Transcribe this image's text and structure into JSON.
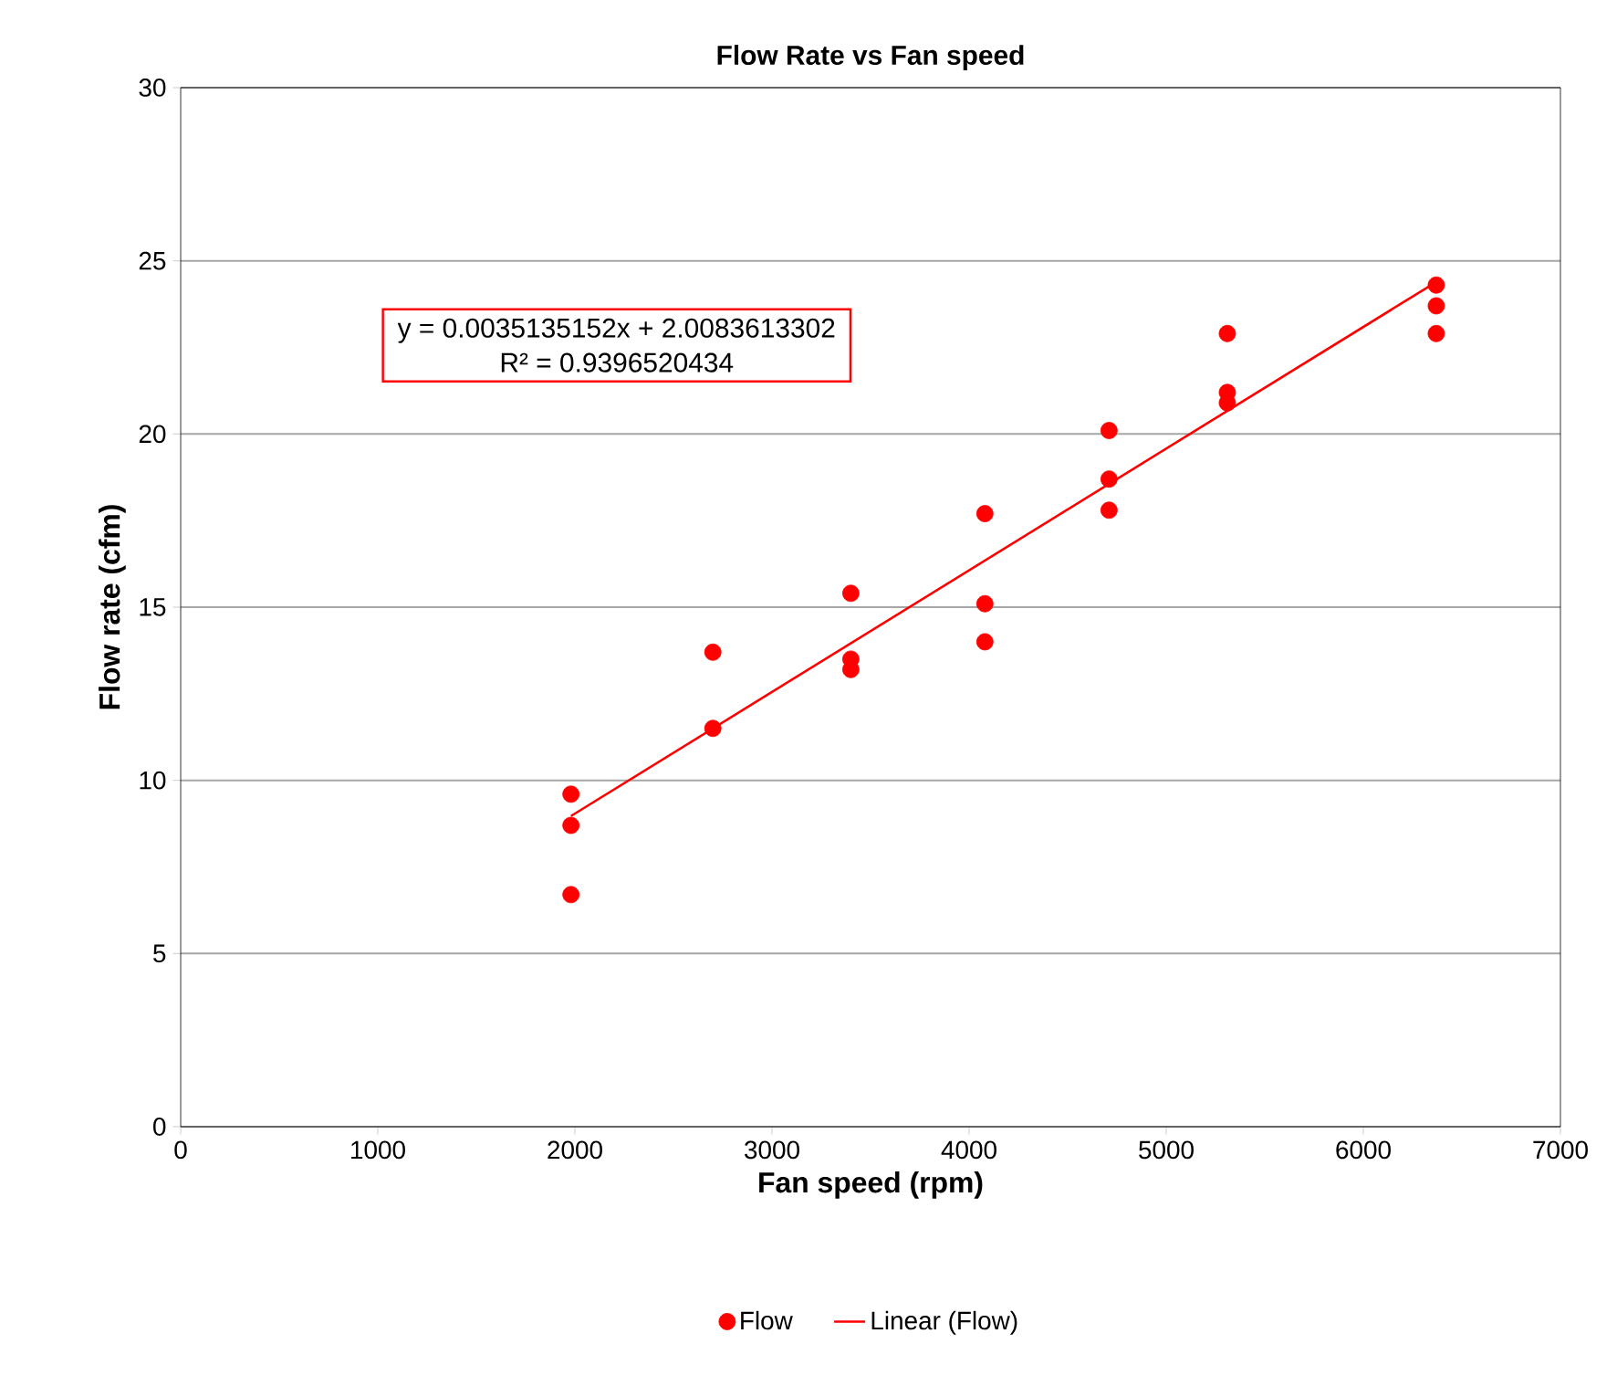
{
  "chart_data": {
    "type": "scatter",
    "title": "Flow Rate vs Fan speed",
    "xlabel": "Fan speed (rpm)",
    "ylabel": "Flow rate (cfm)",
    "xlim": [
      0,
      7000
    ],
    "xticks": [
      0,
      1000,
      2000,
      3000,
      4000,
      5000,
      6000,
      7000
    ],
    "ylim": [
      0,
      30
    ],
    "yticks": [
      0,
      5,
      10,
      15,
      20,
      25,
      30
    ],
    "grid": "y",
    "legend": "bottom",
    "annotations": [
      "y = 0.0035135152x + 2.0083613302",
      "R² = 0.9396520434"
    ],
    "series": [
      {
        "name": "Flow",
        "color": "#ff0000",
        "marker": "circle",
        "x": [
          1980,
          1980,
          1980,
          2700,
          2700,
          3400,
          3400,
          3400,
          4080,
          4080,
          4080,
          4710,
          4710,
          4710,
          5310,
          5310,
          5310,
          6370,
          6370,
          6370
        ],
        "values": [
          9.6,
          8.7,
          6.7,
          13.7,
          11.5,
          15.4,
          13.5,
          13.2,
          17.7,
          15.1,
          14.0,
          20.1,
          18.7,
          17.8,
          22.9,
          21.2,
          20.9,
          24.3,
          23.7,
          22.9
        ]
      },
      {
        "name": "Linear (Flow)",
        "type": "line",
        "color": "#ff0000",
        "marker": "none",
        "x": [
          1980,
          6370
        ],
        "values": [
          8.97,
          24.39
        ]
      }
    ]
  }
}
